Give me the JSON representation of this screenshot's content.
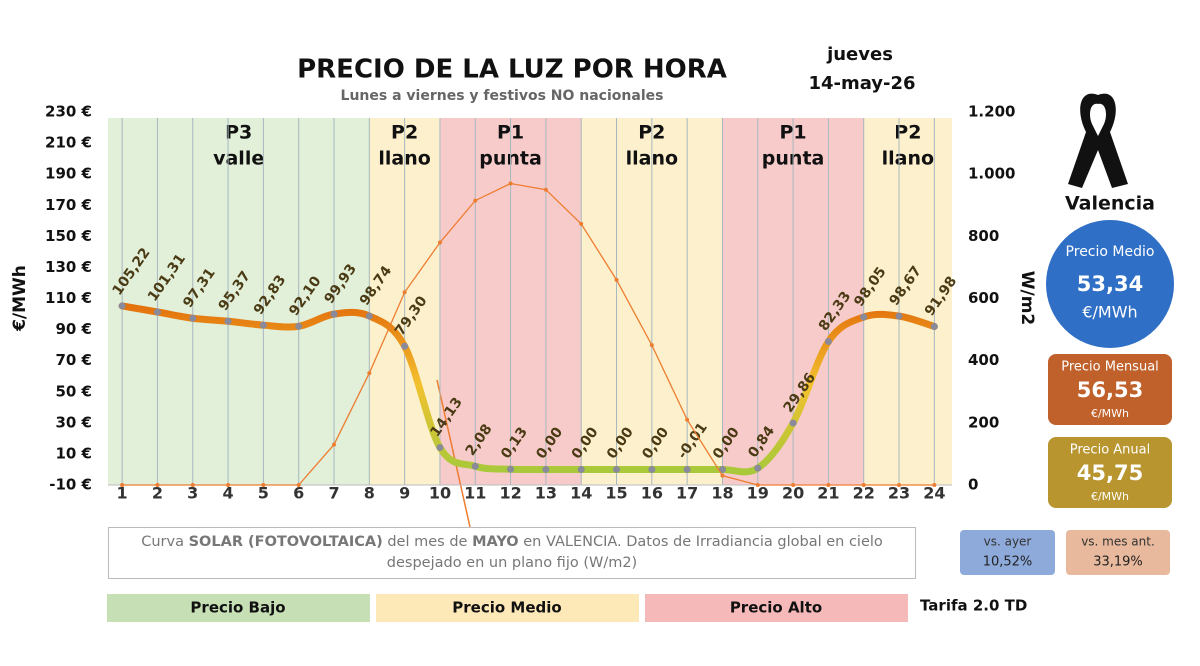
{
  "chart_data": {
    "type": "line",
    "title": "PRECIO DE LA LUZ POR HORA",
    "subtitle": "Lunes a viernes y festivos NO nacionales",
    "weekday": "jueves",
    "date": "14-may-26",
    "ylabel": "€/MWh",
    "y2label": "W/m2",
    "x": [
      1,
      2,
      3,
      4,
      5,
      6,
      7,
      8,
      9,
      10,
      11,
      12,
      13,
      14,
      15,
      16,
      17,
      18,
      19,
      20,
      21,
      22,
      23,
      24
    ],
    "xlim": [
      0.6,
      24.5
    ],
    "ylim": [
      -10,
      230
    ],
    "yticks": [
      {
        "value": -10,
        "label": "-10 €"
      },
      {
        "value": 10,
        "label": "10 €"
      },
      {
        "value": 30,
        "label": "30 €"
      },
      {
        "value": 50,
        "label": "50 €"
      },
      {
        "value": 70,
        "label": "70 €"
      },
      {
        "value": 90,
        "label": "90 €"
      },
      {
        "value": 110,
        "label": "110 €"
      },
      {
        "value": 130,
        "label": "130 €"
      },
      {
        "value": 150,
        "label": "150 €"
      },
      {
        "value": 170,
        "label": "170 €"
      },
      {
        "value": 190,
        "label": "190 €"
      },
      {
        "value": 210,
        "label": "210 €"
      },
      {
        "value": 230,
        "label": "230 €"
      }
    ],
    "y2lim": [
      0,
      1200
    ],
    "y2ticks": [
      0,
      200,
      400,
      600,
      800,
      {
        "value": 1000,
        "label": "1.000"
      },
      {
        "value": 1200,
        "label": "1.200"
      }
    ],
    "bands": [
      {
        "name": "P3",
        "label": "valle",
        "from": 0.6,
        "to": 8,
        "color": "#e2efd9"
      },
      {
        "name": "P2",
        "label": "llano",
        "from": 8,
        "to": 10,
        "color": "#fdf0cc"
      },
      {
        "name": "P1",
        "label": "punta",
        "from": 10,
        "to": 14,
        "color": "#f8cbcb"
      },
      {
        "name": "P2",
        "label": "llano",
        "from": 14,
        "to": 18,
        "color": "#fdf0cc"
      },
      {
        "name": "P1",
        "label": "punta",
        "from": 18,
        "to": 22,
        "color": "#f8cbcb"
      },
      {
        "name": "P2",
        "label": "llano",
        "from": 22,
        "to": 24.5,
        "color": "#fdf0cc"
      }
    ],
    "series": [
      {
        "name": "Precio",
        "color": "#e26b0a",
        "low_color": "#a9c93a",
        "mid_color": "#f2c12e",
        "label_color": "#4a3b14",
        "values": [
          105.22,
          101.31,
          97.31,
          95.37,
          92.83,
          92.1,
          99.93,
          98.74,
          79.3,
          14.13,
          2.08,
          0.13,
          0.0,
          0.0,
          0.0,
          0.0,
          -0.01,
          0.0,
          0.84,
          29.86,
          82.33,
          98.05,
          98.67,
          91.98
        ],
        "value_labels": [
          "105,22",
          "101,31",
          "97,31",
          "95,37",
          "92,83",
          "92,10",
          "99,93",
          "98,74",
          "79,30",
          "14,13",
          "2,08",
          "0,13",
          "0,00",
          "0,00",
          "0,00",
          "0,00",
          "-0,01",
          "0,00",
          "0,84",
          "29,86",
          "82,33",
          "98,05",
          "98,67",
          "91,98"
        ]
      },
      {
        "name": "Solar",
        "axis": "y2",
        "color": "#ed7d31",
        "values": [
          0,
          0,
          0,
          0,
          0,
          0,
          130,
          360,
          620,
          780,
          915,
          970,
          950,
          840,
          660,
          450,
          210,
          30,
          0,
          0,
          0,
          0,
          0,
          0
        ]
      }
    ],
    "annotation": [
      {
        "text": "Curva ",
        "bold": false
      },
      {
        "text": "SOLAR (FOTOVOLTAICA)",
        "bold": true
      },
      {
        "text": " del mes de ",
        "bold": false
      },
      {
        "text": "MAYO",
        "bold": true
      },
      {
        "text": " en VALENCIA. Datos de Irradiancia global en cielo despejado en un plano fijo (W/m2)",
        "bold": false
      }
    ],
    "legend": [
      {
        "name": "Precio Bajo",
        "color": "#c6dfb4"
      },
      {
        "name": "Precio Medio",
        "color": "#fde9b8"
      },
      {
        "name": "Precio Alto",
        "color": "#f6b9b9"
      }
    ],
    "tariff": "Tarifa 2.0 TD",
    "summary": {
      "city": "Valencia",
      "average": {
        "label": "Precio Medio",
        "value": "53,34",
        "unit": "€/MWh",
        "color": "#2f6fc6"
      },
      "monthly": {
        "label": "Precio Mensual",
        "value": "56,53",
        "unit": "€/MWh",
        "color": "#c0602a"
      },
      "yearly": {
        "label": "Precio Anual",
        "value": "45,75",
        "unit": "€/MWh",
        "color": "#b8952f"
      },
      "vs_yesterday": {
        "label": "vs. ayer",
        "value": "10,52%",
        "color": "#8eaadb"
      },
      "vs_last_month": {
        "label": "vs. mes ant.",
        "value": "33,19%",
        "color": "#e8b99c"
      }
    }
  }
}
